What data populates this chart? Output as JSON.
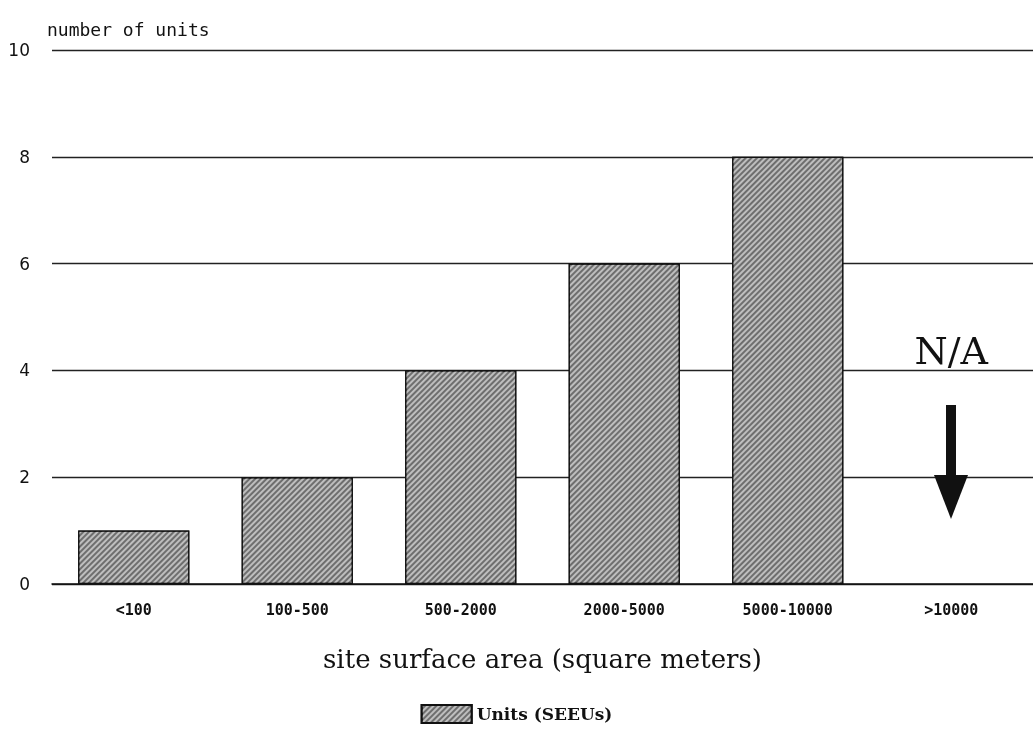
{
  "chart_data": {
    "type": "bar",
    "ylabel": "number of units",
    "xlabel": "site surface area (square meters)",
    "categories": [
      "<100",
      "100-500",
      "500-2000",
      "2000-5000",
      "5000-10000",
      ">10000"
    ],
    "series": [
      {
        "name": "Units (SEEUs)",
        "color": "#6e6e6e",
        "values": [
          1,
          2,
          4,
          6,
          8,
          null
        ]
      }
    ],
    "ylim": [
      0,
      10
    ],
    "yticks": [
      0,
      2,
      4,
      6,
      8,
      10
    ],
    "grid": "y",
    "legend": "bottom",
    "annotations": [
      "N/A"
    ]
  }
}
